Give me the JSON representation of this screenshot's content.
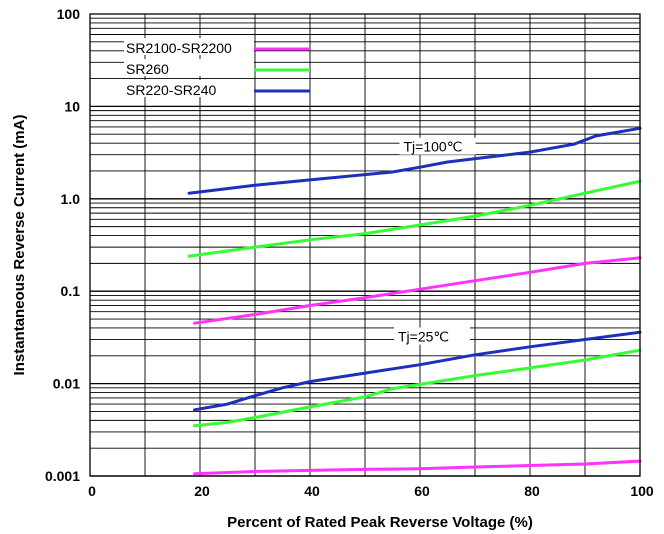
{
  "chart_data": {
    "type": "line",
    "xlabel": "Percent of Rated Peak Reverse Voltage (%)",
    "ylabel": "Instantaneous Reverse Current (mA)",
    "xlim": [
      0,
      100
    ],
    "ylim": [
      0.001,
      100
    ],
    "yscale": "log",
    "grid": true,
    "x_ticks": [
      0,
      20,
      40,
      60,
      80,
      100
    ],
    "x_tick_labels": [
      "0",
      "20",
      "40",
      "60",
      "80",
      "100"
    ],
    "y_ticks": [
      0.001,
      0.01,
      0.1,
      1,
      10,
      100
    ],
    "y_tick_labels": [
      "0.001",
      "0.01",
      "0.1",
      "1.0",
      "10",
      "100"
    ],
    "legend_position": "top-left",
    "legend": [
      {
        "label": "SR2100-SR2200",
        "color": "#ff33ff"
      },
      {
        "label": "SR260",
        "color": "#33ff33"
      },
      {
        "label": "SR220-SR240",
        "color": "#1c2fbf"
      }
    ],
    "annotations": [
      {
        "text": "Tj=100℃",
        "x": 57,
        "y": 3.4
      },
      {
        "text": "Tj=25℃",
        "x": 56,
        "y": 0.03
      }
    ],
    "series": [
      {
        "name": "SR220-SR240",
        "condition": "Tj=100℃",
        "color": "#1c2fbf",
        "x": [
          18,
          30,
          40,
          55,
          60,
          65,
          80,
          88,
          92,
          100
        ],
        "y": [
          1.15,
          1.4,
          1.6,
          1.95,
          2.2,
          2.5,
          3.2,
          3.9,
          4.8,
          5.8
        ]
      },
      {
        "name": "SR260",
        "condition": "Tj=100℃",
        "color": "#33ff33",
        "x": [
          18,
          30,
          40,
          50,
          60,
          70,
          80,
          90,
          100
        ],
        "y": [
          0.24,
          0.3,
          0.36,
          0.42,
          0.52,
          0.65,
          0.85,
          1.15,
          1.55
        ]
      },
      {
        "name": "SR2100-SR2200",
        "condition": "Tj=100℃",
        "color": "#ff33ff",
        "x": [
          19,
          30,
          40,
          50,
          60,
          70,
          80,
          90,
          100
        ],
        "y": [
          0.045,
          0.056,
          0.07,
          0.085,
          0.105,
          0.13,
          0.16,
          0.2,
          0.23
        ]
      },
      {
        "name": "SR220-SR240",
        "condition": "Tj=25℃",
        "color": "#1c2fbf",
        "x": [
          19,
          25,
          30,
          35,
          40,
          50,
          60,
          70,
          80,
          90,
          100
        ],
        "y": [
          0.0052,
          0.006,
          0.0074,
          0.009,
          0.0105,
          0.013,
          0.016,
          0.0205,
          0.025,
          0.03,
          0.036
        ]
      },
      {
        "name": "SR260",
        "condition": "Tj=25℃",
        "color": "#33ff33",
        "x": [
          19,
          25,
          30,
          40,
          50,
          55,
          60,
          70,
          80,
          90,
          100
        ],
        "y": [
          0.0035,
          0.0038,
          0.0043,
          0.0056,
          0.0072,
          0.0088,
          0.0098,
          0.0122,
          0.0148,
          0.018,
          0.023
        ]
      },
      {
        "name": "SR2100-SR2200",
        "condition": "Tj=25℃",
        "color": "#ff33ff",
        "x": [
          19,
          30,
          40,
          50,
          60,
          70,
          80,
          90,
          100
        ],
        "y": [
          0.00106,
          0.00112,
          0.00115,
          0.00118,
          0.0012,
          0.00125,
          0.0013,
          0.00135,
          0.00145
        ]
      }
    ]
  }
}
